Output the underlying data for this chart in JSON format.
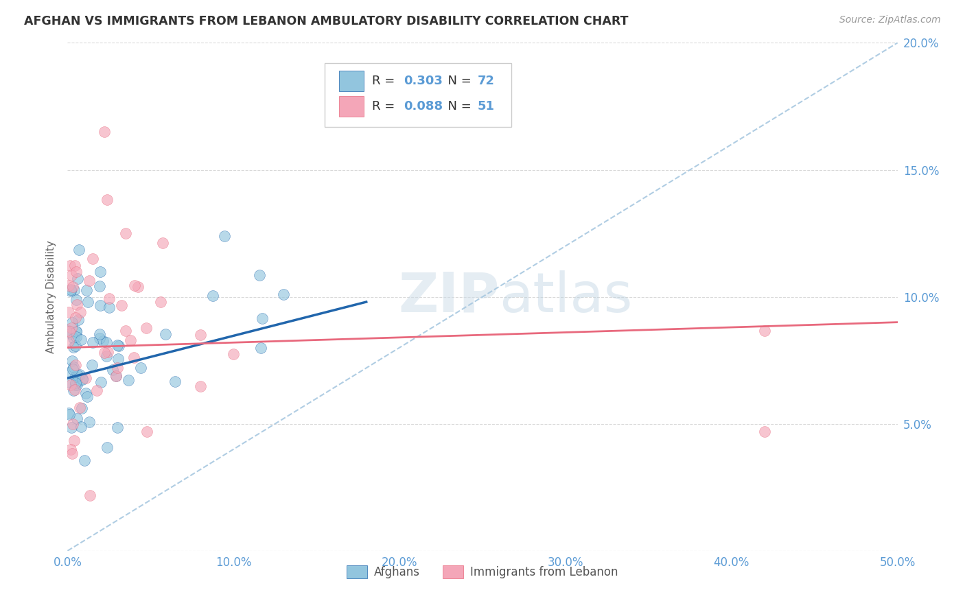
{
  "title": "AFGHAN VS IMMIGRANTS FROM LEBANON AMBULATORY DISABILITY CORRELATION CHART",
  "source": "Source: ZipAtlas.com",
  "ylabel": "Ambulatory Disability",
  "xlim": [
    0.0,
    0.5
  ],
  "ylim": [
    0.0,
    0.2
  ],
  "xticks": [
    0.0,
    0.1,
    0.2,
    0.3,
    0.4,
    0.5
  ],
  "yticks": [
    0.0,
    0.05,
    0.1,
    0.15,
    0.2
  ],
  "xticklabels": [
    "0.0%",
    "10.0%",
    "20.0%",
    "30.0%",
    "40.0%",
    "50.0%"
  ],
  "yticklabels_right": [
    "",
    "5.0%",
    "10.0%",
    "15.0%",
    "20.0%"
  ],
  "legend_label1": "Afghans",
  "legend_label2": "Immigrants from Lebanon",
  "R1": "0.303",
  "N1": "72",
  "R2": "0.088",
  "N2": "51",
  "color_blue": "#92c5de",
  "color_pink": "#f4a6b8",
  "trendline1_color": "#2166ac",
  "trendline2_color": "#e8697d",
  "dashed_line_color": "#a8c8e0",
  "watermark_zip": "ZIP",
  "watermark_atlas": "atlas",
  "tick_color": "#5b9bd5",
  "text_color": "#333333",
  "source_color": "#999999"
}
